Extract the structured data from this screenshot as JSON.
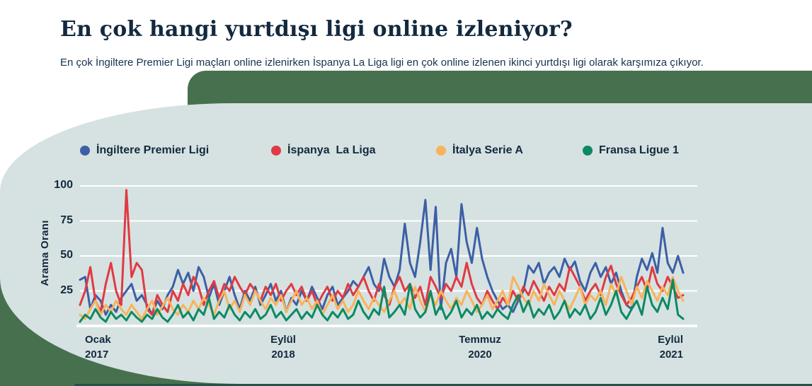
{
  "page": {
    "title": "En çok hangi yurtdışı ligi online izleniyor?",
    "subtitle": "En çok İngiltere Premier Ligi maçları online izlenirken İspanya La Liga ligi en çok online izlenen ikinci yurtdışı ligi olarak karşımıza çıkıyor."
  },
  "colors": {
    "panel_background": "#d6e2e1",
    "green_background": "#47704f",
    "bottom_strip": "#27504b",
    "text_navy": "#13293f",
    "gridline": "#ffffff"
  },
  "legend": {
    "items": [
      {
        "label": "İngiltere Premier Ligi",
        "color": "#3c5fa6"
      },
      {
        "label": "İspanya  La Liga",
        "color": "#e03a44"
      },
      {
        "label": "İtalya Serie A",
        "color": "#f9b35a"
      },
      {
        "label": "Fransa Ligue 1",
        "color": "#0c8a63"
      }
    ]
  },
  "chart_data": {
    "type": "line",
    "title": "En çok hangi yurtdışı ligi online izleniyor?",
    "xlabel": "",
    "ylabel": "Arama Oranı",
    "ylim": [
      0,
      100
    ],
    "grid": true,
    "legend_position": "top",
    "yticks": [
      100,
      75,
      50,
      25
    ],
    "xticks": [
      {
        "month": "Ocak",
        "year": "2017"
      },
      {
        "month": "Eylül",
        "year": "2018"
      },
      {
        "month": "Temmuz",
        "year": "2020"
      },
      {
        "month": "Eylül",
        "year": "2021"
      }
    ],
    "x_range": [
      "Ocak 2017",
      "Eylül 2021"
    ],
    "series": [
      {
        "name": "İngiltere Premier Ligi",
        "color": "#3c5fa6",
        "values": [
          33,
          35,
          12,
          22,
          18,
          8,
          15,
          10,
          20,
          25,
          30,
          18,
          22,
          15,
          8,
          18,
          12,
          22,
          28,
          40,
          30,
          38,
          25,
          42,
          35,
          20,
          30,
          15,
          25,
          35,
          22,
          12,
          25,
          18,
          28,
          15,
          22,
          30,
          18,
          25,
          10,
          20,
          15,
          25,
          18,
          28,
          20,
          12,
          22,
          28,
          15,
          20,
          25,
          32,
          28,
          35,
          42,
          30,
          25,
          48,
          35,
          28,
          40,
          73,
          45,
          35,
          60,
          90,
          40,
          85,
          12,
          45,
          55,
          35,
          87,
          60,
          45,
          70,
          48,
          35,
          25,
          18,
          12,
          15,
          10,
          18,
          25,
          43,
          38,
          45,
          30,
          38,
          42,
          35,
          48,
          40,
          46,
          32,
          25,
          38,
          45,
          35,
          42,
          30,
          38,
          25,
          15,
          12,
          35,
          48,
          40,
          52,
          38,
          70,
          45,
          38,
          50,
          38
        ]
      },
      {
        "name": "İspanya La Liga",
        "color": "#e03a44",
        "values": [
          15,
          25,
          42,
          18,
          10,
          30,
          45,
          25,
          15,
          97,
          35,
          45,
          40,
          12,
          8,
          22,
          15,
          10,
          25,
          18,
          30,
          22,
          35,
          28,
          15,
          25,
          32,
          20,
          30,
          25,
          35,
          28,
          22,
          30,
          25,
          18,
          28,
          22,
          30,
          18,
          25,
          30,
          22,
          28,
          18,
          25,
          15,
          22,
          28,
          18,
          25,
          20,
          30,
          22,
          28,
          35,
          25,
          18,
          30,
          22,
          15,
          28,
          35,
          25,
          30,
          20,
          28,
          15,
          35,
          28,
          20,
          30,
          25,
          35,
          28,
          45,
          30,
          20,
          15,
          25,
          18,
          12,
          20,
          15,
          25,
          18,
          28,
          22,
          32,
          25,
          18,
          28,
          22,
          30,
          25,
          42,
          35,
          28,
          18,
          25,
          30,
          22,
          35,
          43,
          30,
          22,
          15,
          20,
          28,
          35,
          25,
          42,
          30,
          25,
          35,
          28,
          20,
          22
        ]
      },
      {
        "name": "İtalya Serie A",
        "color": "#f9b35a",
        "values": [
          8,
          5,
          12,
          18,
          8,
          15,
          10,
          18,
          12,
          8,
          15,
          10,
          5,
          12,
          18,
          8,
          14,
          20,
          12,
          8,
          15,
          10,
          18,
          12,
          20,
          15,
          8,
          18,
          25,
          12,
          18,
          10,
          22,
          15,
          25,
          18,
          12,
          20,
          15,
          22,
          10,
          18,
          25,
          15,
          20,
          12,
          18,
          8,
          15,
          22,
          12,
          18,
          10,
          15,
          25,
          18,
          12,
          20,
          15,
          10,
          18,
          25,
          15,
          20,
          12,
          28,
          18,
          10,
          22,
          15,
          25,
          18,
          12,
          20,
          15,
          25,
          18,
          10,
          15,
          22,
          12,
          18,
          25,
          15,
          35,
          28,
          20,
          15,
          25,
          18,
          30,
          22,
          15,
          25,
          18,
          12,
          20,
          28,
          15,
          22,
          18,
          25,
          15,
          30,
          22,
          35,
          25,
          15,
          28,
          20,
          32,
          25,
          18,
          28,
          22,
          35,
          25,
          18
        ]
      },
      {
        "name": "Fransa Ligue 1",
        "color": "#0c8a63",
        "values": [
          3,
          8,
          5,
          12,
          6,
          3,
          10,
          5,
          8,
          4,
          10,
          6,
          3,
          8,
          5,
          12,
          6,
          3,
          8,
          15,
          6,
          10,
          4,
          12,
          8,
          20,
          5,
          10,
          6,
          15,
          8,
          4,
          10,
          6,
          12,
          5,
          8,
          15,
          6,
          10,
          4,
          8,
          12,
          5,
          10,
          6,
          15,
          8,
          4,
          10,
          6,
          12,
          5,
          8,
          18,
          10,
          5,
          12,
          8,
          28,
          6,
          10,
          15,
          8,
          30,
          12,
          6,
          10,
          25,
          8,
          15,
          5,
          10,
          18,
          6,
          12,
          8,
          15,
          5,
          10,
          6,
          12,
          8,
          5,
          15,
          22,
          10,
          18,
          6,
          12,
          8,
          15,
          5,
          10,
          18,
          6,
          12,
          8,
          15,
          5,
          10,
          20,
          8,
          15,
          25,
          10,
          5,
          12,
          18,
          8,
          28,
          15,
          10,
          20,
          12,
          33,
          8,
          5
        ]
      }
    ]
  }
}
